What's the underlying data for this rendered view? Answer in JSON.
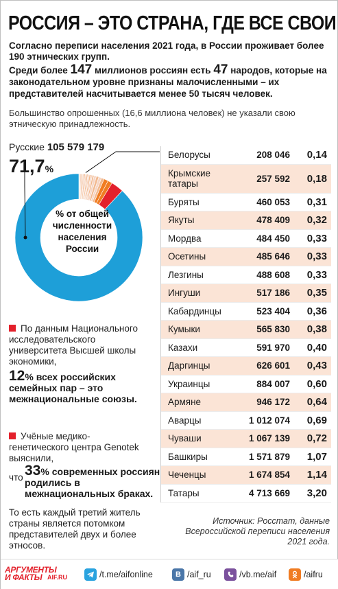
{
  "title": "РОССИЯ – ЭТО СТРАНА, ГДЕ ВСЕ СВОИ",
  "intro": "Согласно переписи населения 2021 года, в России проживает более 190 этнических групп.",
  "fact": {
    "pre": "Среди более ",
    "n1": "147",
    "mid": " миллионов россиян есть ",
    "n2": "47",
    "post": " народов, которые на законодательном уровне признаны малочисленными – их представителей насчитывается менее 50 тысяч человек."
  },
  "note_unspecified": "Большинство опрошенных (16,6 миллиона человек) не указали свою этническую принадлежность.",
  "russians": {
    "label": "Русские",
    "count": "105 579 179",
    "pct": "71,7",
    "pct_unit": "%"
  },
  "donut_center": "% от общей численности населения России",
  "note_hse": "По данным Национального исследовательского университета Высшей школы экономики,",
  "stat_hse": {
    "num": "12",
    "text": "% всех российских семейных пар – это межнациональные союзы."
  },
  "note_genotek": "Учёные медико-генетического центра Genotek выяснили,",
  "stat_genotek": {
    "pre": "что",
    "num": "33",
    "text": "% современных россиян родились в межнациональных браках."
  },
  "note_every_third": "То есть каждый третий житель страны является потомком представителей двух и более этносов.",
  "source": "Источник: Росстат, данные Всероссийской переписи населения 2021 года.",
  "colors": {
    "accent": "#e3202b",
    "donut_main": "#1e9fd8",
    "row_shade": "#fbe4d6",
    "orange": "#f07c22"
  },
  "chart_data": {
    "type": "pie",
    "title": "",
    "unit": "% от общей численности населения России",
    "categories": [
      "Русские",
      "Белорусы",
      "Крымские татары",
      "Буряты",
      "Якуты",
      "Мордва",
      "Осетины",
      "Лезгины",
      "Ингуши",
      "Кабардинцы",
      "Кумыки",
      "Казахи",
      "Даргинцы",
      "Украинцы",
      "Армяне",
      "Аварцы",
      "Чуваши",
      "Башкиры",
      "Чеченцы",
      "Татары"
    ],
    "counts": [
      105579179,
      208046,
      257592,
      460053,
      478409,
      484450,
      485646,
      488608,
      517186,
      523404,
      565830,
      591970,
      626601,
      884007,
      946172,
      1012074,
      1067139,
      1571879,
      1674854,
      4713669
    ],
    "values": [
      71.7,
      0.14,
      0.18,
      0.31,
      0.32,
      0.33,
      0.33,
      0.33,
      0.35,
      0.36,
      0.38,
      0.4,
      0.43,
      0.6,
      0.64,
      0.69,
      0.72,
      1.07,
      1.14,
      3.2
    ]
  },
  "table_rows": [
    {
      "name": "Белорусы",
      "count": "208 046",
      "pct": "0,14"
    },
    {
      "name": "Крымские татары",
      "count": "257 592",
      "pct": "0,18"
    },
    {
      "name": "Буряты",
      "count": "460 053",
      "pct": "0,31"
    },
    {
      "name": "Якуты",
      "count": "478 409",
      "pct": "0,32"
    },
    {
      "name": "Мордва",
      "count": "484 450",
      "pct": "0,33"
    },
    {
      "name": "Осетины",
      "count": "485 646",
      "pct": "0,33"
    },
    {
      "name": "Лезгины",
      "count": "488 608",
      "pct": "0,33"
    },
    {
      "name": "Ингуши",
      "count": "517 186",
      "pct": "0,35"
    },
    {
      "name": "Кабардинцы",
      "count": "523 404",
      "pct": "0,36"
    },
    {
      "name": "Кумыки",
      "count": "565 830",
      "pct": "0,38"
    },
    {
      "name": "Казахи",
      "count": "591 970",
      "pct": "0,40"
    },
    {
      "name": "Даргинцы",
      "count": "626 601",
      "pct": "0,43"
    },
    {
      "name": "Украинцы",
      "count": "884 007",
      "pct": "0,60"
    },
    {
      "name": "Армяне",
      "count": "946 172",
      "pct": "0,64"
    },
    {
      "name": "Аварцы",
      "count": "1 012 074",
      "pct": "0,69"
    },
    {
      "name": "Чуваши",
      "count": "1 067 139",
      "pct": "0,72"
    },
    {
      "name": "Башкиры",
      "count": "1 571 879",
      "pct": "1,07"
    },
    {
      "name": "Чеченцы",
      "count": "1 674 854",
      "pct": "1,14"
    },
    {
      "name": "Татары",
      "count": "4 713 669",
      "pct": "3,20"
    }
  ],
  "footer": {
    "logo_line1": "АРГУМЕНТЫ",
    "logo_line2": "И ФАКТЫ",
    "logo_site": "AIF.RU",
    "telegram": "/t.me/aifonline",
    "vk": "/aif_ru",
    "viber": "/vb.me/aif",
    "ok": "/aifru",
    "vk_icon_text": "В"
  }
}
